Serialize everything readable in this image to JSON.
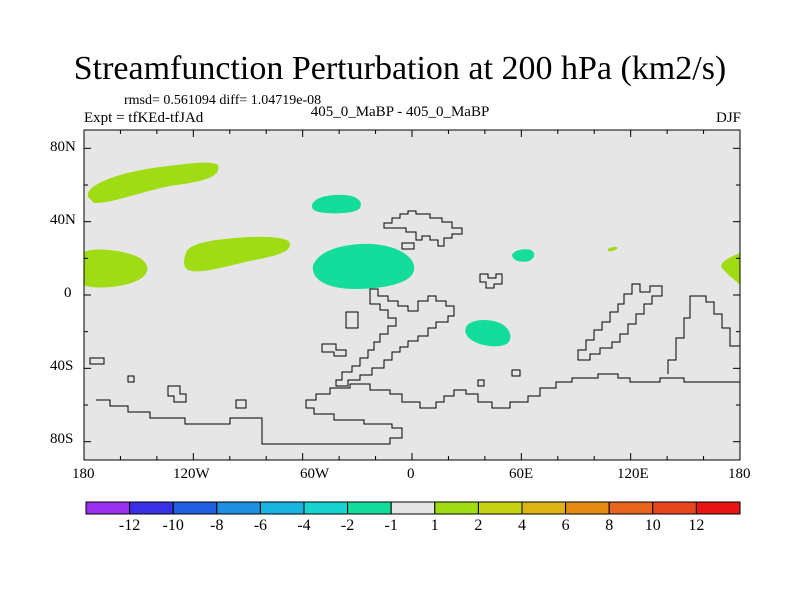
{
  "title": "Streamfunction Perturbation at 200 hPa (km2/s)",
  "stats": "rmsd= 0.561094 diff= 1.04719e-08",
  "experiment": "Expt = tfKEd-tfJAd",
  "difference_label": "405_0_MaBP - 405_0_MaBP",
  "season": "DJF",
  "map": {
    "projection": "cylindrical equidistant",
    "lon_range": [
      -180,
      180
    ],
    "lat_range": [
      -90,
      90
    ],
    "background_color": "#e6e6e6",
    "y_ticks": [
      "80N",
      "40N",
      "0",
      "40S",
      "80S"
    ],
    "x_ticks": [
      "180",
      "120W",
      "60W",
      "0",
      "60E",
      "120E",
      "180"
    ]
  },
  "colorbar": {
    "colors": [
      "#9b2ff0",
      "#3b2fe6",
      "#1f5fe0",
      "#1f8fe0",
      "#19b4df",
      "#19d3cf",
      "#14dc9a",
      "#e6e6e6",
      "#a0dc14",
      "#c8d214",
      "#dcb414",
      "#e68c14",
      "#e6641e",
      "#e6461e",
      "#e61414"
    ],
    "labels": [
      "-12",
      "-10",
      "-8",
      "-6",
      "-4",
      "-2",
      "-1",
      "1",
      "2",
      "4",
      "6",
      "8",
      "10",
      "12"
    ]
  },
  "anomalies": [
    {
      "sign": "positive",
      "color": "#a0dc14",
      "approx_lon": -140,
      "approx_lat": 60
    },
    {
      "sign": "positive",
      "color": "#a0dc14",
      "approx_lon": -165,
      "approx_lat": 15
    },
    {
      "sign": "positive",
      "color": "#a0dc14",
      "approx_lon": -100,
      "approx_lat": 20
    },
    {
      "sign": "negative",
      "color": "#14dc9a",
      "approx_lon": -40,
      "approx_lat": 50
    },
    {
      "sign": "negative",
      "color": "#14dc9a",
      "approx_lon": -25,
      "approx_lat": 15
    },
    {
      "sign": "negative",
      "color": "#14dc9a",
      "approx_lon": 40,
      "approx_lat": -20
    },
    {
      "sign": "negative",
      "color": "#14dc9a",
      "approx_lon": 62,
      "approx_lat": 22
    },
    {
      "sign": "positive",
      "color": "#a0dc14",
      "approx_lon": 110,
      "approx_lat": 25
    },
    {
      "sign": "positive",
      "color": "#a0dc14",
      "approx_lon": 175,
      "approx_lat": 15
    }
  ]
}
